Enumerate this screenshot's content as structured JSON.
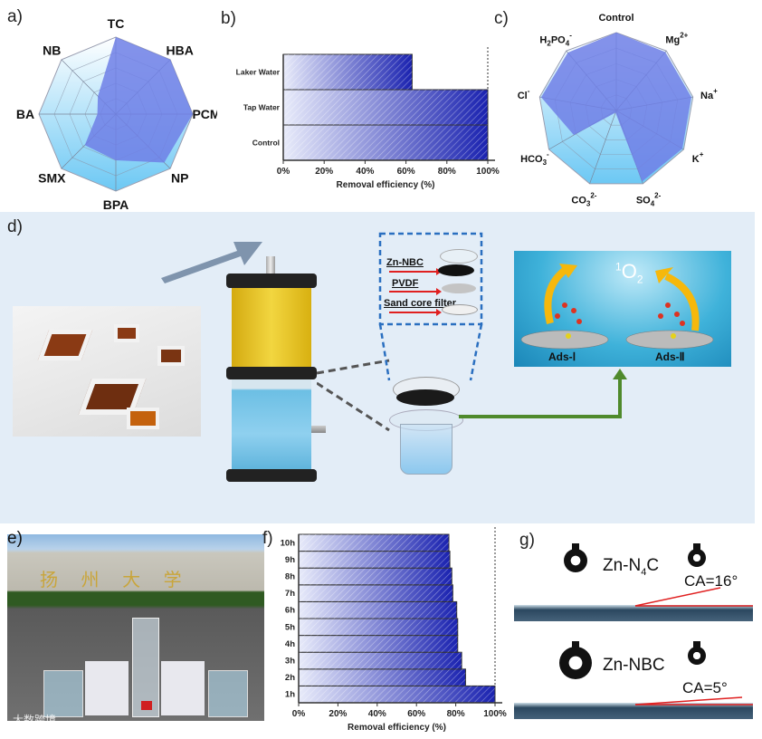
{
  "panel_labels": {
    "a": "a)",
    "b": "b)",
    "c": "c)",
    "d": "d)",
    "e": "e)",
    "f": "f)",
    "g": "g)"
  },
  "chart_data": [
    {
      "id": "a",
      "type": "radar",
      "categories": [
        "TC",
        "HBA",
        "PCM",
        "NP",
        "BPA",
        "SMX",
        "BA",
        "NB"
      ],
      "values": [
        1.0,
        1.0,
        1.0,
        0.89,
        0.6,
        0.57,
        0.24,
        0.33
      ],
      "range": [
        0,
        1
      ],
      "rings": 5,
      "colors": {
        "fill": "#6f7fe6",
        "bg_top": "#ffffff",
        "bg_bottom": "#6cc8f4"
      }
    },
    {
      "id": "b",
      "type": "bar",
      "orientation": "horizontal",
      "categories": [
        "Control",
        "Tap Water",
        "Laker Water"
      ],
      "values": [
        100,
        100,
        63
      ],
      "xlabel": "Removal efficiency (%)",
      "xticks": [
        "0%",
        "20%",
        "40%",
        "60%",
        "80%",
        "100%"
      ],
      "xlim": [
        0,
        100
      ],
      "reference_line": 100,
      "colors": {
        "light": "#e8ebfa",
        "dark": "#1a22b0"
      }
    },
    {
      "id": "c",
      "type": "radar",
      "categories": [
        "Control",
        "Mg2+",
        "Na+",
        "K+",
        "SO42-",
        "CO32-",
        "HCO3-",
        "Cl-",
        "H2PO4-"
      ],
      "category_display": [
        [
          "Control",
          ""
        ],
        [
          "Mg",
          "2+"
        ],
        [
          "Na",
          "+"
        ],
        [
          "K",
          "+"
        ],
        [
          "SO",
          "4",
          "2-"
        ],
        [
          "CO",
          "3",
          "2-"
        ],
        [
          "HCO",
          "3",
          "-"
        ],
        [
          "Cl",
          "-"
        ],
        [
          "H",
          "2",
          "PO",
          "4",
          "-"
        ]
      ],
      "values": [
        1.0,
        0.98,
        0.98,
        0.98,
        0.97,
        0.03,
        0.63,
        0.98,
        0.97
      ],
      "range": [
        0,
        1
      ],
      "rings": 5,
      "colors": {
        "fill": "#6f7fe6",
        "bg_top": "#ffffff",
        "bg_bottom": "#6cc8f4"
      }
    },
    {
      "id": "f",
      "type": "bar",
      "orientation": "horizontal",
      "categories": [
        "1h",
        "2h",
        "3h",
        "4h",
        "5h",
        "6h",
        "7h",
        "8h",
        "9h",
        "10h"
      ],
      "values": [
        100,
        85,
        83,
        81,
        81,
        80.5,
        78.5,
        78,
        77,
        76.5
      ],
      "xlabel": "Removal efficiency (%)",
      "xticks": [
        "0%",
        "20%",
        "40%",
        "60%",
        "80%",
        "100%"
      ],
      "xlim": [
        0,
        100
      ],
      "reference_line": 100,
      "colors": {
        "light": "#e8ebfa",
        "dark": "#1a22b0"
      }
    }
  ],
  "diagram_d": {
    "layers": [
      "Zn-NBC",
      "PVDF",
      "Sand core filter"
    ],
    "oxygen_species": {
      "sup": "1",
      "base": "O",
      "sub": "2"
    },
    "adsorption": [
      "Ads-Ⅰ",
      "Ads-Ⅱ"
    ],
    "colors": {
      "yellow": "#e8c21a",
      "blue": "#6cc0e6",
      "green_arrow": "#4f8a2c",
      "dashed": "#2a6fc0"
    }
  },
  "photo_e": {
    "sign_text": "扬 州 大 学",
    "watermark": "大数跨境"
  },
  "panel_g": {
    "samples": [
      {
        "name_base": "Zn-N",
        "name_sub": "4",
        "name_end": "C",
        "ca": "CA=16°"
      },
      {
        "name_base": "Zn-NBC",
        "name_sub": "",
        "name_end": "",
        "ca": "CA=5°"
      }
    ]
  }
}
